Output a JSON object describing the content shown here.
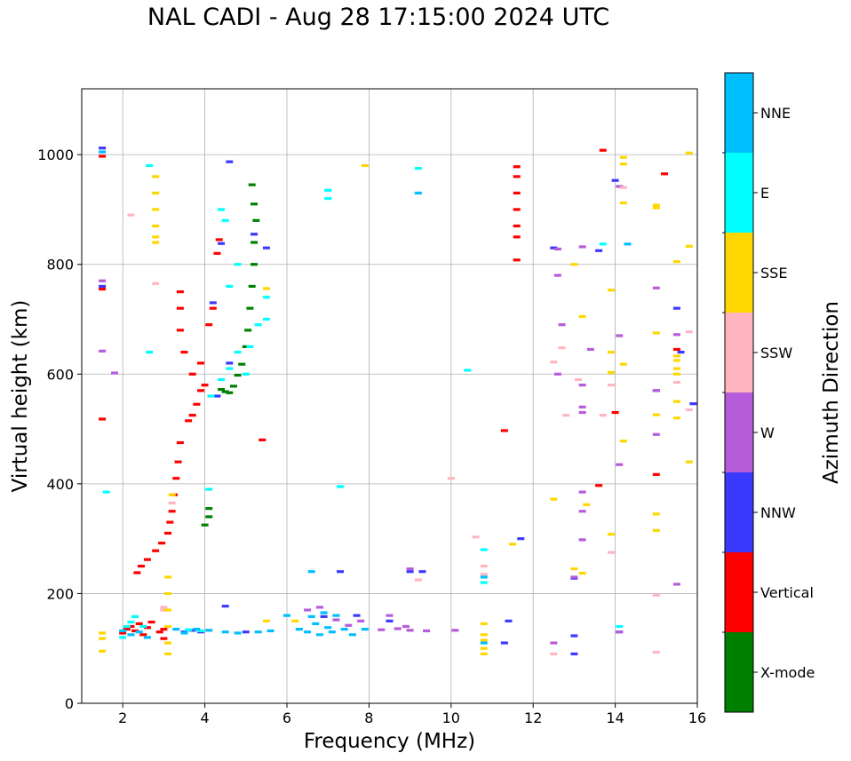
{
  "chart_data": {
    "type": "scatter",
    "title": "NAL CADI - Aug 28 17:15:00 2024 UTC",
    "xlabel": "Frequency (MHz)",
    "ylabel": "Virtual height (km)",
    "xlim": [
      1,
      16
    ],
    "ylim": [
      0,
      1120
    ],
    "xticks": [
      2,
      4,
      6,
      8,
      10,
      12,
      14,
      16
    ],
    "yticks": [
      0,
      200,
      400,
      600,
      800,
      1000
    ],
    "grid": true,
    "colorbar": {
      "label": "Azimuth Direction",
      "categories": [
        {
          "name": "X-mode",
          "color": "#008000"
        },
        {
          "name": "Vertical",
          "color": "#ff0000"
        },
        {
          "name": "NNW",
          "color": "#3a3aff"
        },
        {
          "name": "W",
          "color": "#b65cdb"
        },
        {
          "name": "SSW",
          "color": "#ffb6c1"
        },
        {
          "name": "SSE",
          "color": "#ffd700"
        },
        {
          "name": "E",
          "color": "#00ffff"
        },
        {
          "name": "NNE",
          "color": "#00bfff"
        }
      ]
    },
    "series": [
      {
        "name": "X-mode",
        "points": [
          [
            4.4,
            572
          ],
          [
            4.5,
            568
          ],
          [
            4.6,
            566
          ],
          [
            4.7,
            578
          ],
          [
            4.8,
            598
          ],
          [
            4.9,
            618
          ],
          [
            5.0,
            650
          ],
          [
            5.05,
            680
          ],
          [
            5.1,
            720
          ],
          [
            5.15,
            760
          ],
          [
            5.2,
            800
          ],
          [
            5.2,
            840
          ],
          [
            5.25,
            880
          ],
          [
            5.2,
            910
          ],
          [
            5.15,
            945
          ],
          [
            4.1,
            340
          ],
          [
            4.1,
            355
          ],
          [
            4.0,
            325
          ]
        ]
      },
      {
        "name": "Vertical",
        "points": [
          [
            1.5,
            997
          ],
          [
            1.5,
            755
          ],
          [
            1.5,
            518
          ],
          [
            2.0,
            128
          ],
          [
            2.1,
            135
          ],
          [
            2.2,
            140
          ],
          [
            2.3,
            132
          ],
          [
            2.4,
            145
          ],
          [
            2.5,
            125
          ],
          [
            2.6,
            138
          ],
          [
            2.7,
            148
          ],
          [
            2.9,
            130
          ],
          [
            3.0,
            135
          ],
          [
            2.35,
            238
          ],
          [
            2.45,
            250
          ],
          [
            2.6,
            262
          ],
          [
            2.8,
            278
          ],
          [
            2.95,
            292
          ],
          [
            3.1,
            310
          ],
          [
            3.15,
            330
          ],
          [
            3.2,
            350
          ],
          [
            3.25,
            380
          ],
          [
            3.3,
            410
          ],
          [
            3.35,
            440
          ],
          [
            3.4,
            475
          ],
          [
            3.6,
            515
          ],
          [
            3.7,
            525
          ],
          [
            3.8,
            545
          ],
          [
            3.9,
            570
          ],
          [
            3.7,
            600
          ],
          [
            3.5,
            640
          ],
          [
            3.4,
            680
          ],
          [
            3.4,
            720
          ],
          [
            3.4,
            750
          ],
          [
            3.9,
            620
          ],
          [
            4.0,
            580
          ],
          [
            4.1,
            690
          ],
          [
            4.2,
            720
          ],
          [
            4.3,
            820
          ],
          [
            4.35,
            845
          ],
          [
            5.4,
            480
          ],
          [
            11.3,
            497
          ],
          [
            11.6,
            808
          ],
          [
            11.6,
            850
          ],
          [
            11.6,
            870
          ],
          [
            11.6,
            900
          ],
          [
            11.6,
            930
          ],
          [
            11.6,
            960
          ],
          [
            11.6,
            978
          ],
          [
            13.6,
            397
          ],
          [
            13.7,
            1008
          ],
          [
            14.0,
            530
          ],
          [
            15.0,
            417
          ],
          [
            15.2,
            965
          ],
          [
            15.5,
            645
          ],
          [
            3.0,
            118
          ]
        ]
      },
      {
        "name": "NNW",
        "points": [
          [
            1.5,
            1012
          ],
          [
            1.5,
            760
          ],
          [
            3.5,
            130
          ],
          [
            3.7,
            133
          ],
          [
            3.9,
            130
          ],
          [
            4.5,
            177
          ],
          [
            4.6,
            987
          ],
          [
            4.2,
            730
          ],
          [
            4.3,
            560
          ],
          [
            4.4,
            838
          ],
          [
            4.6,
            620
          ],
          [
            5.0,
            130
          ],
          [
            5.2,
            855
          ],
          [
            5.5,
            830
          ],
          [
            6.9,
            158
          ],
          [
            7.3,
            240
          ],
          [
            7.7,
            160
          ],
          [
            8.5,
            150
          ],
          [
            9.0,
            240
          ],
          [
            9.3,
            240
          ],
          [
            11.3,
            110
          ],
          [
            11.4,
            150
          ],
          [
            11.7,
            300
          ],
          [
            12.5,
            830
          ],
          [
            13.0,
            90
          ],
          [
            13.0,
            123
          ],
          [
            13.0,
            228
          ],
          [
            13.6,
            825
          ],
          [
            14.0,
            953
          ],
          [
            14.1,
            130
          ],
          [
            15.0,
            570
          ],
          [
            15.5,
            720
          ],
          [
            15.6,
            640
          ],
          [
            15.9,
            546
          ]
        ]
      },
      {
        "name": "W",
        "points": [
          [
            1.5,
            642
          ],
          [
            1.5,
            770
          ],
          [
            1.8,
            602
          ],
          [
            6.5,
            170
          ],
          [
            6.8,
            175
          ],
          [
            7.2,
            152
          ],
          [
            7.5,
            142
          ],
          [
            7.8,
            150
          ],
          [
            8.3,
            134
          ],
          [
            8.5,
            160
          ],
          [
            8.7,
            136
          ],
          [
            8.9,
            140
          ],
          [
            9.0,
            245
          ],
          [
            9.0,
            133
          ],
          [
            9.4,
            132
          ],
          [
            10.1,
            133
          ],
          [
            12.5,
            110
          ],
          [
            12.6,
            600
          ],
          [
            12.6,
            780
          ],
          [
            12.6,
            828
          ],
          [
            12.7,
            690
          ],
          [
            13.0,
            230
          ],
          [
            13.2,
            298
          ],
          [
            13.2,
            385
          ],
          [
            13.2,
            350
          ],
          [
            13.2,
            530
          ],
          [
            13.2,
            540
          ],
          [
            13.2,
            580
          ],
          [
            13.2,
            832
          ],
          [
            13.4,
            645
          ],
          [
            14.1,
            130
          ],
          [
            14.1,
            435
          ],
          [
            14.1,
            670
          ],
          [
            14.1,
            942
          ],
          [
            15.0,
            490
          ],
          [
            15.0,
            570
          ],
          [
            15.0,
            757
          ],
          [
            15.5,
            217
          ],
          [
            15.5,
            672
          ]
        ]
      },
      {
        "name": "SSW",
        "points": [
          [
            2.2,
            890
          ],
          [
            2.8,
            765
          ],
          [
            3.2,
            365
          ],
          [
            3.0,
            175
          ],
          [
            3.0,
            170
          ],
          [
            9.2,
            225
          ],
          [
            10.0,
            410
          ],
          [
            10.6,
            303
          ],
          [
            10.8,
            235
          ],
          [
            10.8,
            250
          ],
          [
            12.5,
            90
          ],
          [
            12.5,
            622
          ],
          [
            12.7,
            648
          ],
          [
            12.8,
            525
          ],
          [
            13.1,
            590
          ],
          [
            13.7,
            525
          ],
          [
            13.9,
            275
          ],
          [
            13.9,
            580
          ],
          [
            14.2,
            940
          ],
          [
            15.0,
            197
          ],
          [
            15.0,
            93
          ],
          [
            15.5,
            585
          ],
          [
            15.8,
            677
          ],
          [
            15.8,
            535
          ]
        ]
      },
      {
        "name": "SSE",
        "points": [
          [
            1.5,
            95
          ],
          [
            1.5,
            118
          ],
          [
            1.5,
            128
          ],
          [
            2.8,
            850
          ],
          [
            2.8,
            870
          ],
          [
            2.8,
            900
          ],
          [
            2.8,
            930
          ],
          [
            2.8,
            960
          ],
          [
            2.8,
            840
          ],
          [
            3.1,
            230
          ],
          [
            3.1,
            200
          ],
          [
            3.1,
            170
          ],
          [
            3.1,
            140
          ],
          [
            3.1,
            110
          ],
          [
            3.1,
            90
          ],
          [
            3.2,
            380
          ],
          [
            5.5,
            150
          ],
          [
            5.5,
            756
          ],
          [
            6.2,
            150
          ],
          [
            7.9,
            980
          ],
          [
            10.8,
            90
          ],
          [
            10.8,
            100
          ],
          [
            10.8,
            115
          ],
          [
            10.8,
            125
          ],
          [
            10.8,
            145
          ],
          [
            11.5,
            290
          ],
          [
            12.5,
            372
          ],
          [
            13.0,
            800
          ],
          [
            13.0,
            245
          ],
          [
            13.2,
            237
          ],
          [
            13.2,
            705
          ],
          [
            13.3,
            362
          ],
          [
            13.9,
            308
          ],
          [
            13.9,
            603
          ],
          [
            13.9,
            640
          ],
          [
            13.9,
            753
          ],
          [
            14.2,
            478
          ],
          [
            14.2,
            618
          ],
          [
            14.2,
            912
          ],
          [
            14.2,
            983
          ],
          [
            14.2,
            995
          ],
          [
            15.0,
            345
          ],
          [
            15.0,
            315
          ],
          [
            15.0,
            526
          ],
          [
            15.0,
            675
          ],
          [
            15.0,
            903
          ],
          [
            15.0,
            908
          ],
          [
            15.5,
            520
          ],
          [
            15.5,
            550
          ],
          [
            15.5,
            600
          ],
          [
            15.5,
            610
          ],
          [
            15.5,
            625
          ],
          [
            15.5,
            633
          ],
          [
            15.5,
            805
          ],
          [
            15.8,
            440
          ],
          [
            15.8,
            833
          ],
          [
            15.8,
            1003
          ]
        ]
      },
      {
        "name": "E",
        "points": [
          [
            1.6,
            385
          ],
          [
            2.0,
            120
          ],
          [
            2.1,
            140
          ],
          [
            2.2,
            148
          ],
          [
            2.3,
            158
          ],
          [
            2.5,
            140
          ],
          [
            2.65,
            980
          ],
          [
            2.65,
            640
          ],
          [
            3.6,
            134
          ],
          [
            3.9,
            132
          ],
          [
            4.1,
            390
          ],
          [
            4.15,
            560
          ],
          [
            4.4,
            590
          ],
          [
            4.6,
            610
          ],
          [
            4.8,
            640
          ],
          [
            5.0,
            600
          ],
          [
            5.1,
            650
          ],
          [
            5.3,
            690
          ],
          [
            5.5,
            700
          ],
          [
            5.5,
            740
          ],
          [
            4.4,
            900
          ],
          [
            4.5,
            880
          ],
          [
            4.6,
            760
          ],
          [
            4.8,
            800
          ],
          [
            7.0,
            935
          ],
          [
            7.0,
            920
          ],
          [
            7.3,
            395
          ],
          [
            9.2,
            975
          ],
          [
            10.4,
            607
          ],
          [
            10.8,
            220
          ],
          [
            10.8,
            280
          ],
          [
            13.7,
            837
          ],
          [
            14.1,
            140
          ]
        ]
      },
      {
        "name": "NNE",
        "points": [
          [
            1.5,
            1005
          ],
          [
            2.0,
            132
          ],
          [
            2.2,
            125
          ],
          [
            2.4,
            130
          ],
          [
            2.6,
            120
          ],
          [
            3.3,
            135
          ],
          [
            3.5,
            128
          ],
          [
            3.8,
            135
          ],
          [
            4.1,
            133
          ],
          [
            4.5,
            130
          ],
          [
            4.8,
            128
          ],
          [
            5.3,
            130
          ],
          [
            5.6,
            132
          ],
          [
            6.0,
            160
          ],
          [
            6.3,
            135
          ],
          [
            6.5,
            130
          ],
          [
            6.6,
            158
          ],
          [
            6.7,
            145
          ],
          [
            6.8,
            125
          ],
          [
            6.9,
            165
          ],
          [
            7.0,
            138
          ],
          [
            7.1,
            130
          ],
          [
            7.2,
            160
          ],
          [
            7.4,
            135
          ],
          [
            7.6,
            125
          ],
          [
            6.6,
            240
          ],
          [
            7.9,
            135
          ],
          [
            9.2,
            930
          ],
          [
            10.8,
            110
          ],
          [
            10.8,
            230
          ],
          [
            14.3,
            837
          ]
        ]
      }
    ]
  }
}
